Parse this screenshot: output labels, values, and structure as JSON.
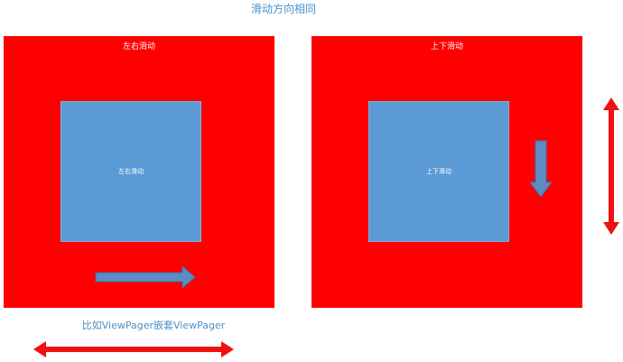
{
  "title": "滑动方向相同",
  "caption": "比如ViewPager嵌套ViewPager",
  "left_panel": {
    "outer_label": "左右滑动",
    "inner_label": "左右滑动",
    "arrow_icon": "arrow-right-icon"
  },
  "right_panel": {
    "outer_label": "上下滑动",
    "inner_label": "上下滑动",
    "arrow_icon": "arrow-down-icon"
  },
  "side_icons": {
    "vertical": "double-arrow-vertical-icon",
    "horizontal": "double-arrow-horizontal-icon"
  },
  "colors": {
    "outer": "#fe0000",
    "inner": "#5b9bd5",
    "text_accent": "#4a8fc8",
    "arrow_blue": "#5b8dc4"
  }
}
